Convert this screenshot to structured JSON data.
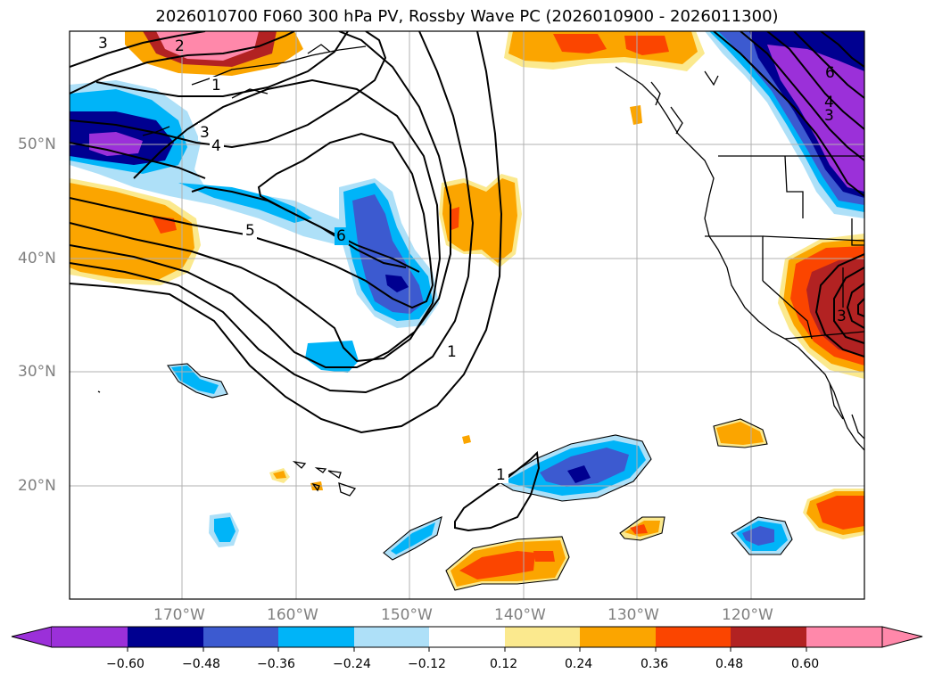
{
  "title": "2026010700 F060 300 hPa PV, Rossby Wave PC (2026010900 - 2026011300)",
  "latitude_labels": [
    "50°N",
    "40°N",
    "30°N",
    "20°N"
  ],
  "longitude_labels": [
    "170°W",
    "160°W",
    "150°W",
    "140°W",
    "130°W",
    "120°W"
  ],
  "colorbar": {
    "ticks": [
      "−0.60",
      "−0.48",
      "−0.36",
      "−0.24",
      "−0.12",
      "0.12",
      "0.24",
      "0.36",
      "0.48",
      "0.60"
    ],
    "colors": [
      "#9b30d9",
      "#000090",
      "#3c5ad0",
      "#00b4f8",
      "#aee0f8",
      "#ffffff",
      "#fbe98e",
      "#fba500",
      "#fb4500",
      "#b22222",
      "#ff88aa"
    ]
  },
  "contour_labels": [
    "3",
    "2",
    "1",
    "3",
    "4",
    "5",
    "6",
    "1",
    "1",
    "6",
    "4",
    "3",
    "3"
  ],
  "colors": {
    "purple": "#9b30d9",
    "navy": "#000090",
    "royal": "#3c5ad0",
    "sky": "#00b4f8",
    "pale_blue": "#aee0f8",
    "pale_yellow": "#fbe98e",
    "orange": "#fba500",
    "red_orange": "#fb4500",
    "firebrick": "#b22222",
    "pink": "#ff88aa",
    "grid": "#b0b0b0"
  }
}
